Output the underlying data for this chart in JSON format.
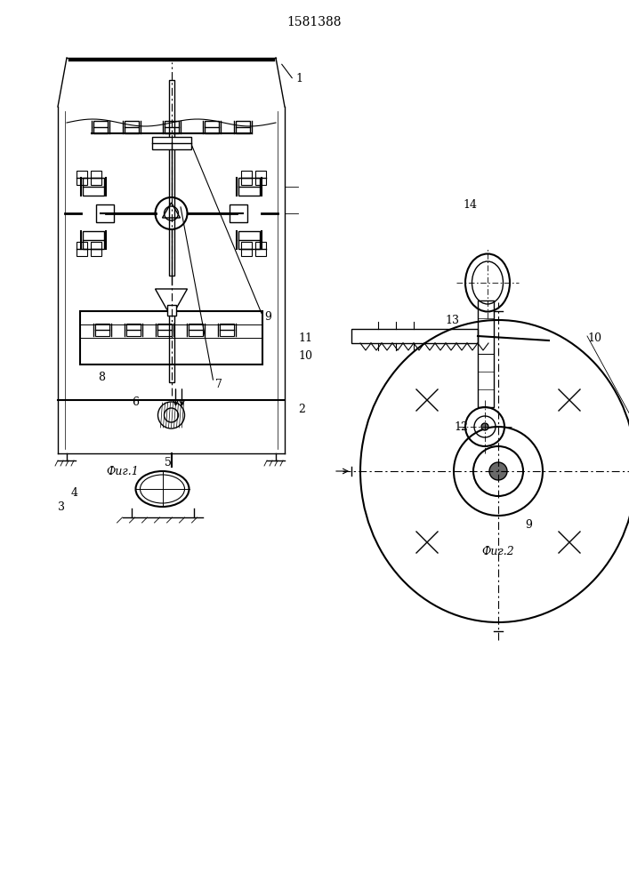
{
  "title": "1581388",
  "fig1_caption": "Фиг.1",
  "fig2_caption": "Фиг.2",
  "bg_color": "#ffffff",
  "line_color": "#000000",
  "line_width": 1.0
}
